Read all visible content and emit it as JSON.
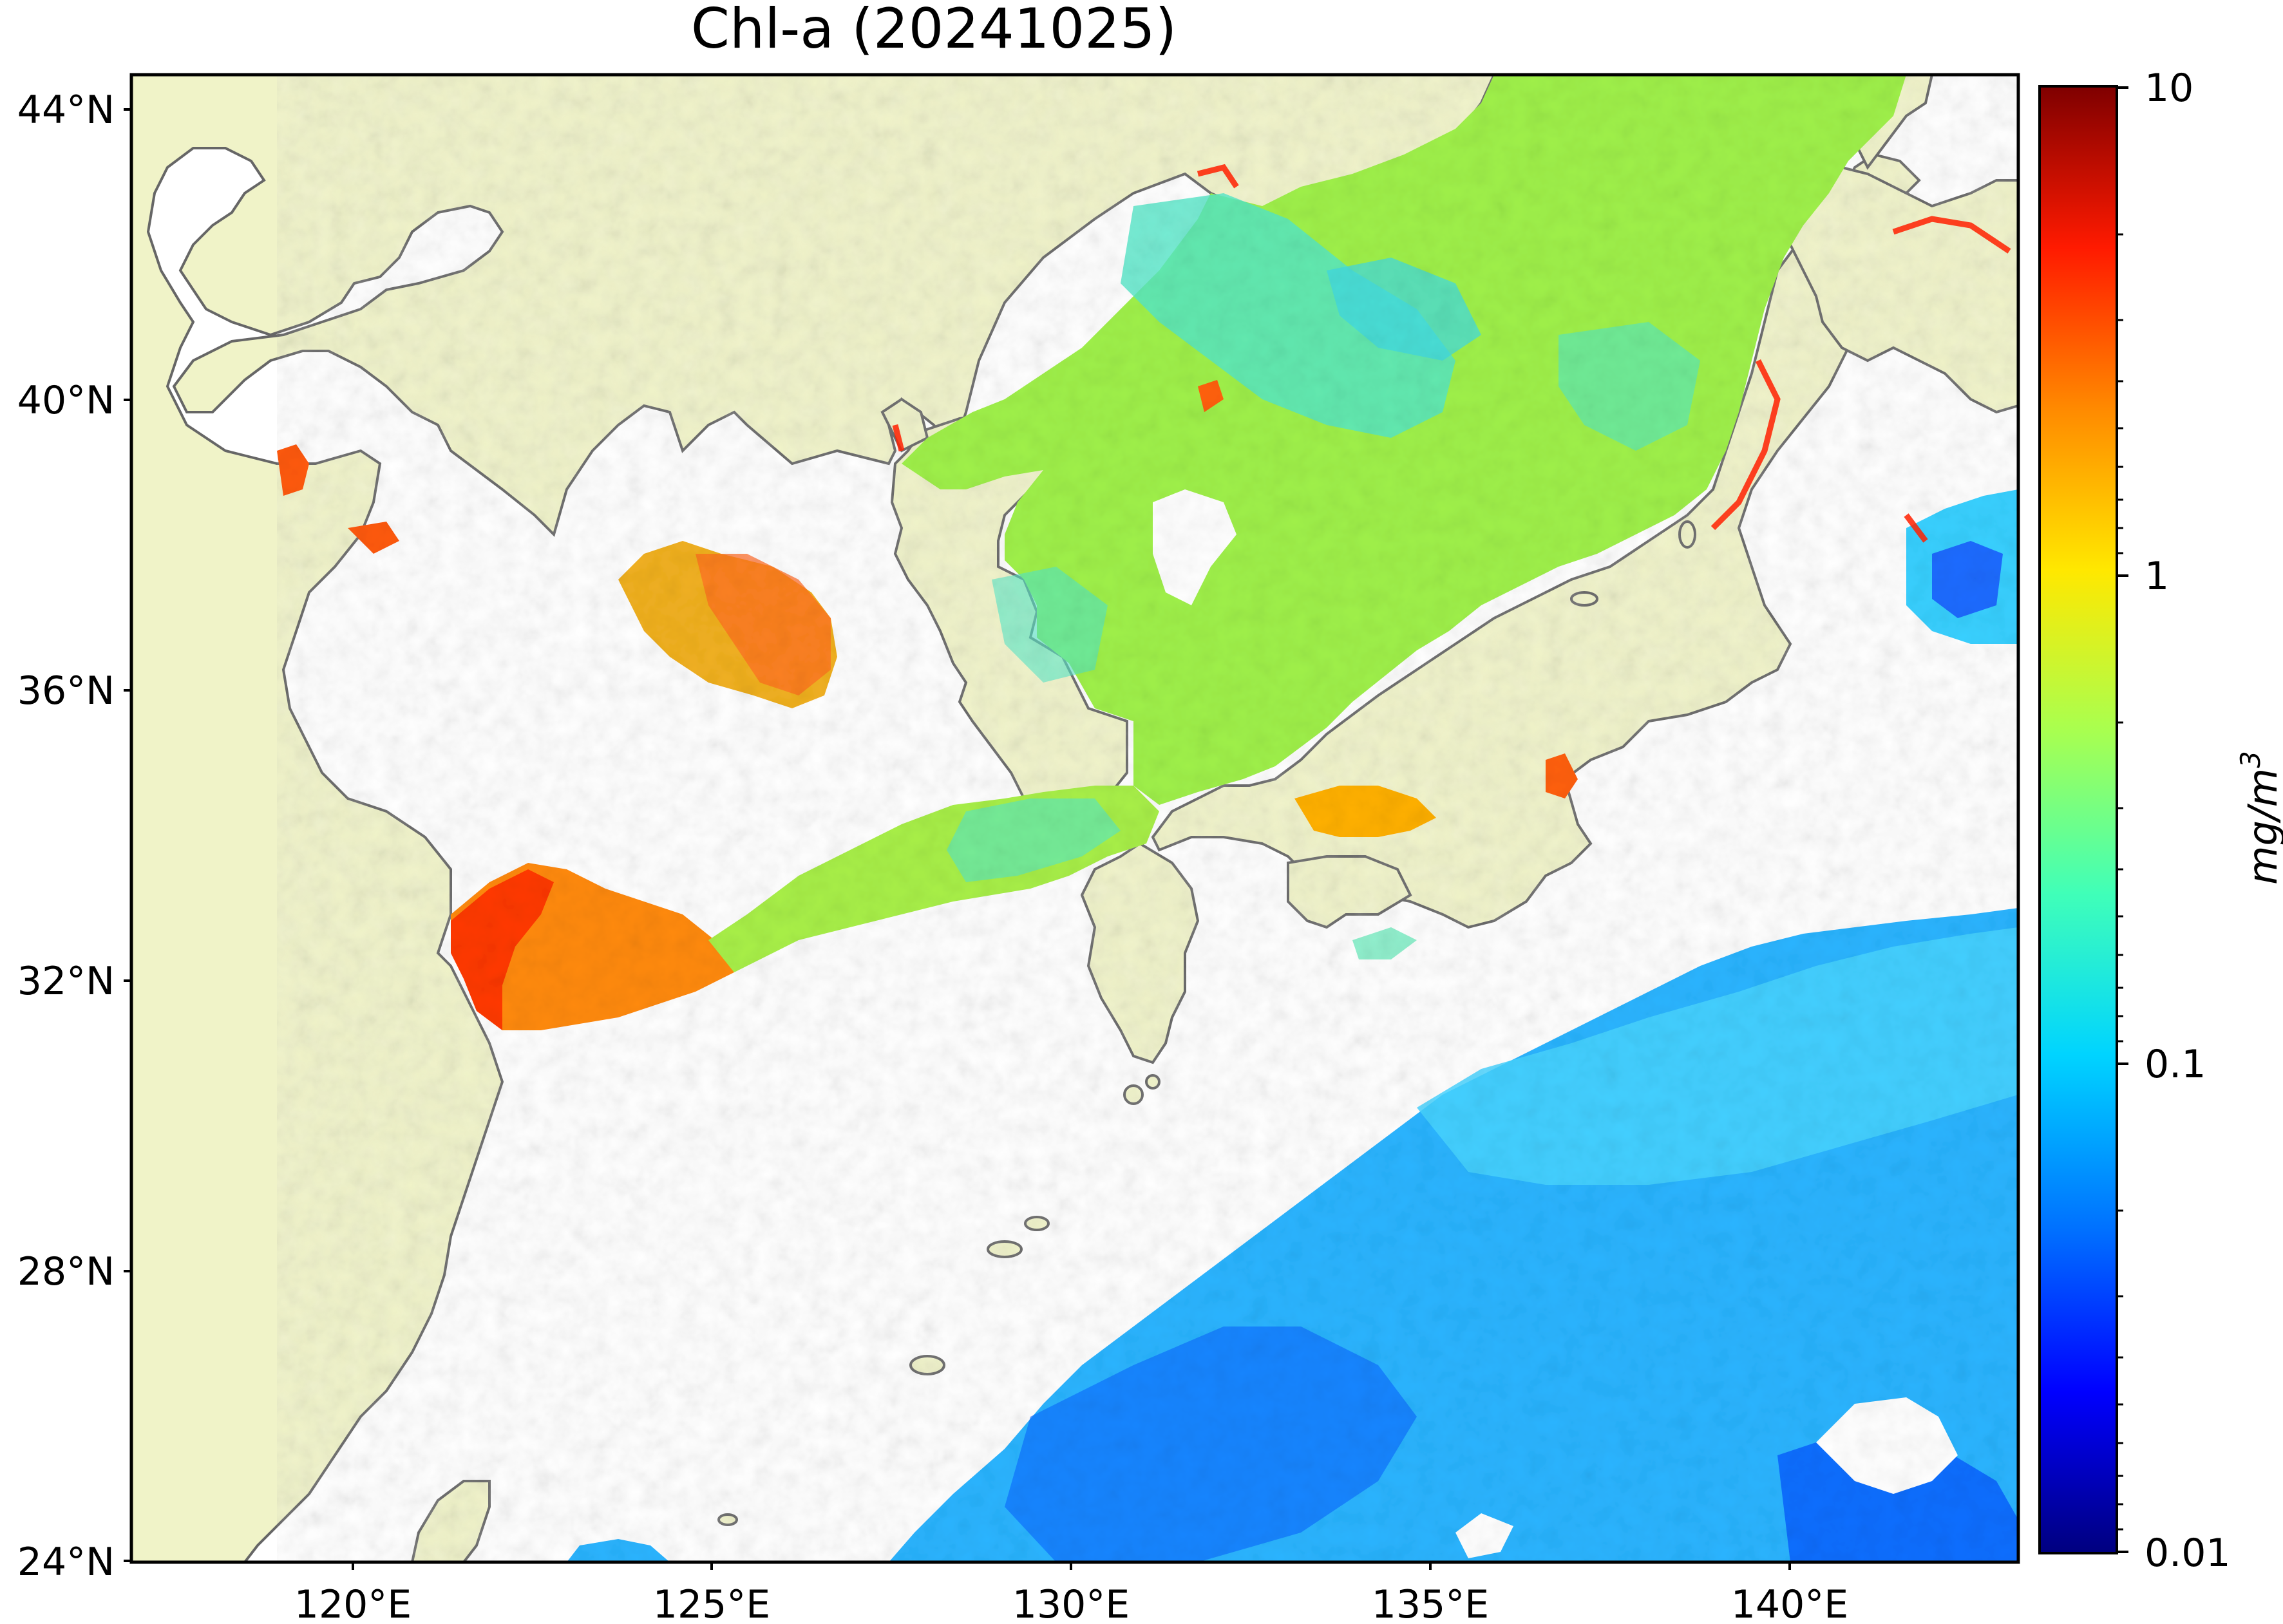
{
  "title": "Chl-a (20241025)",
  "colorbar": {
    "unit": "mg/m",
    "unit_sup": "3",
    "scale": "log",
    "ticks": [
      "10",
      "1",
      "0.1",
      "0.01"
    ],
    "range": [
      0.01,
      10
    ],
    "colormap": [
      "#00007f",
      "#0000ff",
      "#0080ff",
      "#00e0ff",
      "#50ffa6",
      "#c0ff38",
      "#ffe500",
      "#ff7a00",
      "#ff1100",
      "#7f0000"
    ]
  },
  "axes": {
    "lat_ticks": [
      "44°N",
      "40°N",
      "36°N",
      "32°N",
      "28°N",
      "24°N"
    ],
    "lon_ticks": [
      "120°E",
      "125°E",
      "130°E",
      "135°E",
      "140°E"
    ],
    "lon_range": [
      117,
      143
    ],
    "lat_range": [
      24,
      44.5
    ]
  },
  "colors": {
    "land": "#f0f3c8",
    "coast": "#666666",
    "nodata": "#ffffff"
  }
}
